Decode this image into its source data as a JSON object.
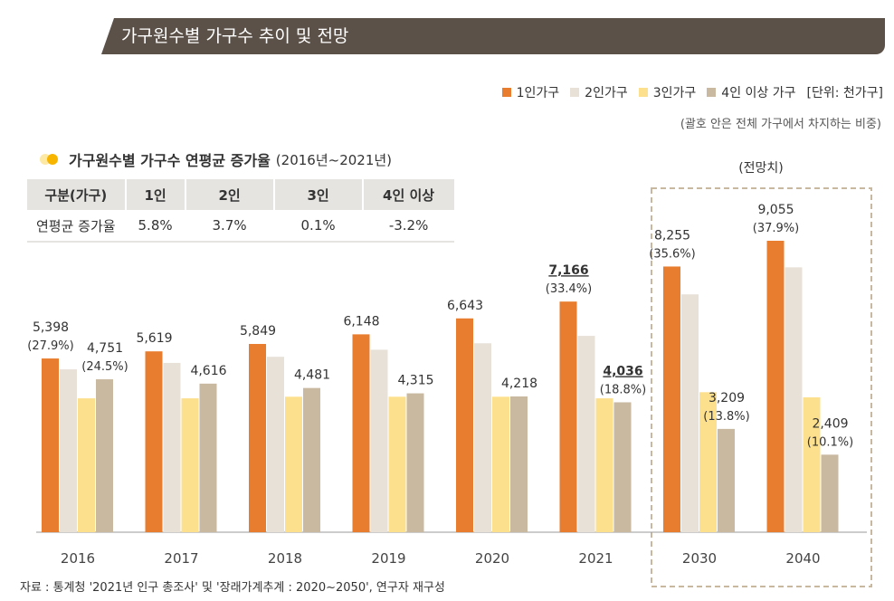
{
  "title": "가구원수별 가구수 추이 및 전망",
  "legend": {
    "items": [
      "1인가구",
      "2인가구",
      "3인가구",
      "4인 이상 가구"
    ],
    "unit": "[단위: 천가구]",
    "note": "(괄호 안은 전체 가구에서 차지하는 비중)"
  },
  "table": {
    "title": "가구원수별 가구수 연평균 증가율",
    "period": "(2016년~2021년)",
    "headers": [
      "구분(가구)",
      "1인",
      "2인",
      "3인",
      "4인 이상"
    ],
    "row": [
      "연평균 증가율",
      "5.8%",
      "3.7%",
      "0.1%",
      "-3.2%"
    ]
  },
  "forecast_label": "(전망치)",
  "source": "자료 : 통계청 '2021년 인구 총조사' 및 '장래가계추계 : 2020~2050', 연구자 재구성",
  "chart_data": {
    "type": "bar",
    "categories": [
      "2016",
      "2017",
      "2018",
      "2019",
      "2020",
      "2021",
      "2030",
      "2040"
    ],
    "colors": [
      "#e97d2f",
      "#e8e1d8",
      "#fde08e",
      "#c9b9a0"
    ],
    "series": [
      {
        "name": "1인가구",
        "values": [
          5398,
          5619,
          5849,
          6148,
          6643,
          7166,
          8255,
          9055
        ],
        "labels": [
          "5,398",
          "5,619",
          "5,849",
          "6,148",
          "6,643",
          "7,166",
          "8,255",
          "9,055"
        ],
        "shares": [
          "(27.9%)",
          "",
          "",
          "",
          "",
          "(33.4%)",
          "(35.6%)",
          "(37.9%)"
        ]
      },
      {
        "name": "2인가구",
        "values": [
          5060,
          5260,
          5450,
          5670,
          5870,
          6100,
          7390,
          8230
        ]
      },
      {
        "name": "3인가구",
        "values": [
          4160,
          4160,
          4210,
          4210,
          4210,
          4160,
          4350,
          4190
        ]
      },
      {
        "name": "4인 이상 가구",
        "values": [
          4751,
          4616,
          4481,
          4315,
          4218,
          4036,
          3209,
          2409
        ],
        "labels": [
          "4,751",
          "4,616",
          "4,481",
          "4,315",
          "4,218",
          "4,036",
          "3,209",
          "2,409"
        ],
        "shares": [
          "(24.5%)",
          "",
          "",
          "",
          "",
          "(18.8%)",
          "(13.8%)",
          "(10.1%)"
        ]
      }
    ],
    "ylim": [
      0,
      9500
    ]
  }
}
